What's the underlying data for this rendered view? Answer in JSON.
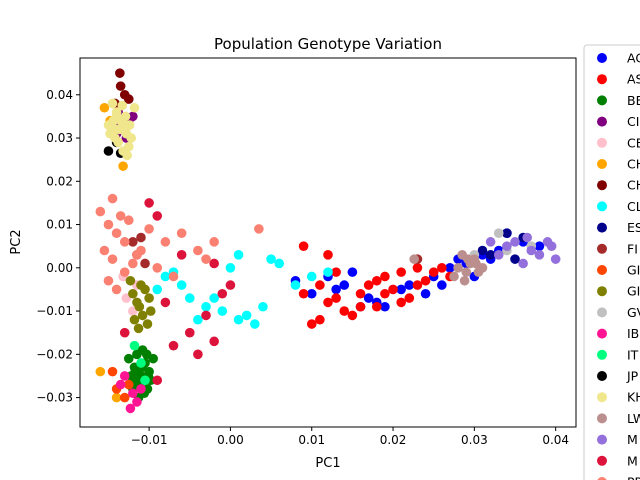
{
  "chart_data": {
    "type": "scatter",
    "title": "Population Genotype Variation",
    "xlabel": "PC1",
    "ylabel": "PC2",
    "xlim": [
      -0.0185,
      0.0425
    ],
    "ylim": [
      -0.0368,
      0.0485
    ],
    "xticks": [
      -0.01,
      0.0,
      0.01,
      0.02,
      0.03,
      0.04
    ],
    "xtick_labels": [
      "−0.01",
      "0.00",
      "0.01",
      "0.02",
      "0.03",
      "0.04"
    ],
    "yticks": [
      -0.03,
      -0.02,
      -0.01,
      0.0,
      0.01,
      0.02,
      0.03,
      0.04
    ],
    "ytick_labels": [
      "−0.03",
      "−0.02",
      "−0.01",
      "0.00",
      "0.01",
      "0.02",
      "0.03",
      "0.04"
    ],
    "grid": false,
    "legend_position": "right-outside",
    "series": [
      {
        "name": "AC",
        "color": "#0000ff",
        "points": [
          [
            0.008,
            -0.003
          ],
          [
            0.012,
            -0.002
          ],
          [
            0.015,
            -0.001
          ],
          [
            0.018,
            -0.008
          ],
          [
            0.021,
            -0.005
          ],
          [
            0.024,
            -0.006
          ],
          [
            0.026,
            -0.004
          ],
          [
            0.028,
            0.002
          ],
          [
            0.029,
            0.001
          ],
          [
            0.03,
            -0.002
          ],
          [
            0.031,
            0.003
          ],
          [
            0.033,
            0.004
          ],
          [
            0.034,
            0.008
          ],
          [
            0.036,
            0.006
          ],
          [
            0.038,
            0.005
          ],
          [
            0.016,
            -0.009
          ],
          [
            0.019,
            -0.009
          ],
          [
            0.022,
            -0.004
          ],
          [
            0.013,
            -0.005
          ],
          [
            0.025,
            -0.002
          ],
          [
            0.027,
            0.0
          ],
          [
            0.01,
            -0.006
          ],
          [
            0.014,
            -0.004
          ],
          [
            0.017,
            -0.007
          ],
          [
            0.032,
            0.002
          ]
        ]
      },
      {
        "name": "AS",
        "color": "#ff0000",
        "points": [
          [
            0.009,
            0.005
          ],
          [
            0.01,
            -0.013
          ],
          [
            0.011,
            -0.012
          ],
          [
            0.012,
            -0.008
          ],
          [
            0.013,
            -0.007
          ],
          [
            0.014,
            -0.01
          ],
          [
            0.015,
            -0.011
          ],
          [
            0.016,
            -0.006
          ],
          [
            0.017,
            -0.004
          ],
          [
            0.018,
            -0.003
          ],
          [
            0.019,
            -0.002
          ],
          [
            0.02,
            -0.005
          ],
          [
            0.021,
            -0.008
          ],
          [
            0.022,
            -0.007
          ],
          [
            0.023,
            -0.004
          ],
          [
            0.024,
            -0.003
          ],
          [
            0.025,
            -0.001
          ],
          [
            0.026,
            0.0
          ],
          [
            0.027,
            -0.002
          ],
          [
            0.012,
            0.003
          ],
          [
            0.016,
            -0.009
          ],
          [
            0.019,
            -0.006
          ],
          [
            0.021,
            -0.001
          ],
          [
            0.023,
            0.0
          ],
          [
            0.011,
            -0.004
          ],
          [
            0.013,
            -0.001
          ],
          [
            0.018,
            -0.009
          ],
          [
            0.009,
            -0.006
          ]
        ]
      },
      {
        "name": "BE",
        "color": "#007f00",
        "points": [
          [
            -0.0125,
            -0.021
          ],
          [
            -0.0118,
            -0.023
          ],
          [
            -0.011,
            -0.025
          ],
          [
            -0.0105,
            -0.022
          ],
          [
            -0.0112,
            -0.027
          ],
          [
            -0.012,
            -0.028
          ],
          [
            -0.01,
            -0.024
          ],
          [
            -0.0095,
            -0.021
          ],
          [
            -0.0108,
            -0.019
          ],
          [
            -0.0115,
            -0.02
          ],
          [
            -0.0122,
            -0.025
          ],
          [
            -0.0102,
            -0.028
          ],
          [
            -0.0098,
            -0.026
          ],
          [
            -0.0113,
            -0.03
          ],
          [
            -0.0106,
            -0.029
          ],
          [
            -0.0119,
            -0.026
          ],
          [
            -0.0103,
            -0.02
          ],
          [
            -0.0109,
            -0.023
          ],
          [
            -0.0117,
            -0.024
          ],
          [
            -0.0101,
            -0.025
          ]
        ]
      },
      {
        "name": "CI",
        "color": "#800080",
        "points": [
          [
            -0.014,
            0.031
          ],
          [
            -0.0135,
            0.033
          ],
          [
            -0.013,
            0.032
          ],
          [
            -0.0125,
            0.034
          ],
          [
            -0.0138,
            0.036
          ],
          [
            -0.0128,
            0.03
          ],
          [
            -0.012,
            0.035
          ]
        ]
      },
      {
        "name": "CE",
        "color": "#ffc0cb",
        "points": [
          [
            -0.0128,
            -0.007
          ],
          [
            -0.012,
            -0.01
          ],
          [
            -0.0115,
            -0.004
          ],
          [
            -0.0132,
            -0.002
          ]
        ]
      },
      {
        "name": "CH",
        "color": "#ffa500",
        "points": [
          [
            -0.0155,
            0.037
          ],
          [
            -0.0132,
            0.0235
          ],
          [
            -0.0148,
            0.034
          ],
          [
            -0.016,
            -0.024
          ],
          [
            -0.014,
            -0.03
          ]
        ]
      },
      {
        "name": "CH",
        "color": "#800000",
        "points": [
          [
            -0.0136,
            0.045
          ],
          [
            -0.013,
            0.04
          ],
          [
            -0.0142,
            0.038
          ],
          [
            -0.0125,
            0.039
          ],
          [
            -0.0135,
            0.042
          ]
        ]
      },
      {
        "name": "CL",
        "color": "#00ffff",
        "points": [
          [
            -0.008,
            -0.002
          ],
          [
            -0.006,
            -0.004
          ],
          [
            -0.005,
            -0.007
          ],
          [
            -0.003,
            -0.009
          ],
          [
            -0.001,
            -0.01
          ],
          [
            0.001,
            -0.012
          ],
          [
            0.002,
            -0.011
          ],
          [
            0.004,
            -0.009
          ],
          [
            0.005,
            0.002
          ],
          [
            0.006,
            0.001
          ],
          [
            0.008,
            -0.004
          ],
          [
            0.01,
            -0.002
          ],
          [
            0.012,
            -0.001
          ],
          [
            0.0,
            0.0
          ],
          [
            0.001,
            0.003
          ],
          [
            -0.004,
            -0.012
          ],
          [
            -0.007,
            -0.001
          ],
          [
            -0.002,
            -0.007
          ],
          [
            0.003,
            -0.013
          ],
          [
            -0.009,
            -0.005
          ]
        ]
      },
      {
        "name": "ES",
        "color": "#00008b",
        "points": [
          [
            0.031,
            0.004
          ],
          [
            0.034,
            0.008
          ],
          [
            0.036,
            0.007
          ],
          [
            0.032,
            0.003
          ],
          [
            0.035,
            0.002
          ]
        ]
      },
      {
        "name": "FI",
        "color": "#a52a2a",
        "points": [
          [
            -0.011,
            0.007
          ],
          [
            -0.0115,
            0.003
          ],
          [
            -0.0105,
            0.001
          ],
          [
            0.023,
            0.002
          ],
          [
            -0.012,
            0.006
          ]
        ]
      },
      {
        "name": "GI",
        "color": "#ff4500",
        "points": [
          [
            -0.014,
            -0.028
          ],
          [
            -0.013,
            -0.03
          ],
          [
            -0.0145,
            -0.024
          ],
          [
            -0.0125,
            -0.027
          ]
        ]
      },
      {
        "name": "GI",
        "color": "#808000",
        "points": [
          [
            -0.012,
            -0.006
          ],
          [
            -0.0115,
            -0.008
          ],
          [
            -0.011,
            -0.004
          ],
          [
            -0.0108,
            -0.011
          ],
          [
            -0.0102,
            -0.013
          ],
          [
            -0.0118,
            -0.012
          ],
          [
            -0.0112,
            -0.009
          ],
          [
            -0.01,
            -0.007
          ],
          [
            -0.0098,
            -0.01
          ],
          [
            -0.0123,
            -0.003
          ],
          [
            -0.0105,
            -0.005
          ],
          [
            -0.0113,
            -0.014
          ]
        ]
      },
      {
        "name": "GV",
        "color": "#c0c0c0",
        "points": [
          [
            0.033,
            0.008
          ],
          [
            0.03,
            0.003
          ],
          [
            0.034,
            0.004
          ],
          [
            0.037,
            0.005
          ]
        ]
      },
      {
        "name": "IB",
        "color": "#ff1493",
        "points": [
          [
            -0.013,
            -0.025
          ],
          [
            -0.012,
            -0.029
          ],
          [
            -0.0115,
            -0.031
          ],
          [
            -0.0123,
            -0.0325
          ],
          [
            -0.0135,
            -0.027
          ],
          [
            -0.011,
            -0.028
          ]
        ]
      },
      {
        "name": "IT",
        "color": "#00ff7f",
        "points": [
          [
            -0.0118,
            -0.018
          ],
          [
            -0.011,
            -0.022
          ],
          [
            -0.0105,
            -0.026
          ]
        ]
      },
      {
        "name": "JP",
        "color": "#000000",
        "points": [
          [
            -0.015,
            0.027
          ],
          [
            -0.0135,
            0.0265
          ],
          [
            -0.014,
            0.029
          ]
        ]
      },
      {
        "name": "KH",
        "color": "#f0e68c",
        "points": [
          [
            -0.0145,
            0.038
          ],
          [
            -0.014,
            0.036
          ],
          [
            -0.0135,
            0.034
          ],
          [
            -0.013,
            0.033
          ],
          [
            -0.0128,
            0.031
          ],
          [
            -0.0142,
            0.03
          ],
          [
            -0.0138,
            0.029
          ],
          [
            -0.0125,
            0.028
          ],
          [
            -0.0132,
            0.027
          ],
          [
            -0.014,
            0.035
          ],
          [
            -0.015,
            0.033
          ],
          [
            -0.0148,
            0.031
          ],
          [
            -0.0127,
            0.026
          ],
          [
            -0.0136,
            0.032
          ],
          [
            -0.0122,
            0.03
          ],
          [
            -0.0133,
            0.0375
          ],
          [
            -0.0144,
            0.034
          ],
          [
            -0.0129,
            0.035
          ],
          [
            -0.0141,
            0.032
          ],
          [
            -0.0124,
            0.033
          ],
          [
            -0.0118,
            0.037
          ]
        ]
      },
      {
        "name": "LW",
        "color": "#bc8f8f",
        "points": [
          [
            0.028,
            0.0
          ],
          [
            0.029,
            -0.001
          ],
          [
            0.0295,
            0.001
          ],
          [
            0.03,
            0.002
          ],
          [
            0.031,
            0.0
          ],
          [
            0.0285,
            0.003
          ],
          [
            0.0275,
            -0.002
          ],
          [
            0.0305,
            -0.001
          ],
          [
            0.0292,
            0.002
          ],
          [
            0.0288,
            -0.003
          ],
          [
            0.0302,
            0.001
          ],
          [
            0.0226,
            0.002
          ]
        ]
      },
      {
        "name": "M",
        "color": "#9370db",
        "points": [
          [
            0.033,
            0.003
          ],
          [
            0.035,
            0.006
          ],
          [
            0.037,
            0.004
          ],
          [
            0.039,
            0.006
          ],
          [
            0.04,
            0.002
          ],
          [
            0.036,
            0.001
          ],
          [
            0.034,
            0.005
          ],
          [
            0.038,
            0.003
          ],
          [
            0.032,
            0.006
          ],
          [
            0.0395,
            0.005
          ],
          [
            0.0365,
            0.007
          ]
        ]
      },
      {
        "name": "M",
        "color": "#dc143c",
        "points": [
          [
            -0.01,
            0.015
          ],
          [
            -0.009,
            0.012
          ],
          [
            -0.006,
            0.003
          ],
          [
            -0.002,
            0.001
          ],
          [
            0.0,
            -0.004
          ],
          [
            -0.008,
            -0.008
          ],
          [
            -0.005,
            -0.015
          ],
          [
            -0.007,
            -0.018
          ],
          [
            -0.004,
            -0.02
          ],
          [
            -0.002,
            -0.017
          ],
          [
            -0.013,
            -0.015
          ],
          [
            -0.009,
            -0.026
          ],
          [
            -0.003,
            -0.011
          ],
          [
            -0.001,
            -0.006
          ]
        ]
      },
      {
        "name": "PR",
        "color": "#fa8072",
        "points": [
          [
            -0.016,
            0.013
          ],
          [
            -0.015,
            0.01
          ],
          [
            -0.014,
            0.008
          ],
          [
            -0.013,
            0.006
          ],
          [
            -0.0145,
            0.016
          ],
          [
            -0.0135,
            0.012
          ],
          [
            -0.0125,
            0.011
          ],
          [
            -0.011,
            0.004
          ],
          [
            -0.01,
            0.009
          ],
          [
            -0.008,
            0.006
          ],
          [
            -0.006,
            0.008
          ],
          [
            -0.004,
            0.004
          ],
          [
            -0.002,
            0.006
          ],
          [
            -0.003,
            0.002
          ],
          [
            0.0035,
            0.009
          ],
          [
            -0.015,
            -0.003
          ],
          [
            -0.014,
            -0.005
          ],
          [
            -0.013,
            -0.001
          ],
          [
            -0.0155,
            0.004
          ],
          [
            -0.012,
            0.001
          ],
          [
            -0.007,
            -0.002
          ],
          [
            -0.009,
            0.0
          ],
          [
            -0.0145,
            0.002
          ],
          [
            -0.0115,
            0.003
          ]
        ]
      }
    ]
  }
}
